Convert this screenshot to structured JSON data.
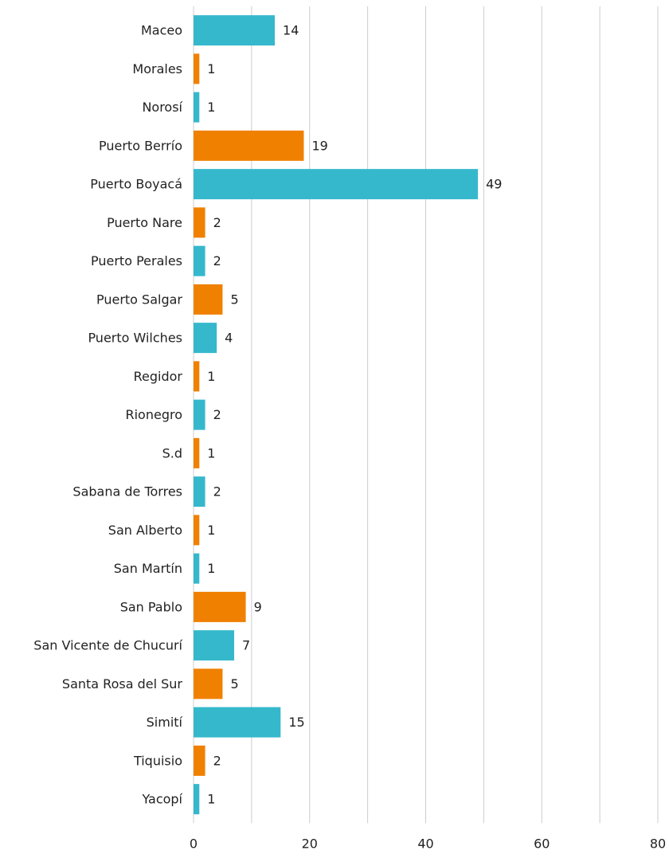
{
  "chart_data": {
    "type": "barh",
    "categories": [
      "Maceo",
      "Morales",
      "Norosí",
      "Puerto Berrío",
      "Puerto Boyacá",
      "Puerto Nare",
      "Puerto Perales",
      "Puerto Salgar",
      "Puerto Wilches",
      "Regidor",
      "Rionegro",
      "S.d",
      "Sabana de Torres",
      "San Alberto",
      "San Martín",
      "San Pablo",
      "San Vicente de Chucurí",
      "Santa Rosa del Sur",
      "Simití",
      "Tiquisio",
      "Yacopí"
    ],
    "values": [
      14,
      1,
      1,
      19,
      49,
      2,
      2,
      5,
      4,
      1,
      2,
      1,
      2,
      1,
      1,
      9,
      7,
      5,
      15,
      2,
      1
    ],
    "colors": [
      "#35b8cc",
      "#f08000"
    ],
    "xlim": [
      0,
      80
    ],
    "xticks": [
      0,
      20,
      40,
      60,
      80
    ],
    "minor_xticks": [
      10,
      30,
      50,
      70
    ],
    "grid": true
  }
}
